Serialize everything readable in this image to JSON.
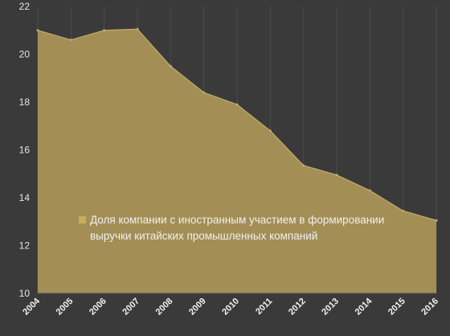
{
  "chart_data": {
    "type": "area",
    "x": [
      "2004",
      "2005",
      "2006",
      "2007",
      "2008",
      "2009",
      "2010",
      "2011",
      "2012",
      "2013",
      "2014",
      "2015",
      "2016"
    ],
    "series": [
      {
        "name": "Доля компании с иностранным участием в формировании выручки китайских промышленных компаний",
        "values": [
          21.0,
          20.6,
          21.0,
          21.05,
          19.5,
          18.4,
          17.9,
          16.8,
          15.35,
          14.95,
          14.3,
          13.45,
          13.05
        ]
      }
    ],
    "legend_lines": [
      "Доля компании с иностранным участием в формировании",
      "выручки китайских промышленных компаний"
    ],
    "yticks": [
      "10",
      "12",
      "14",
      "16",
      "18",
      "20",
      "22"
    ],
    "ylim": [
      10,
      22
    ],
    "grid": "vertical-at-categories",
    "legend_position": "center-left",
    "colors": {
      "background": "#3a3a3a",
      "area_fill": "#a38f56",
      "area_line": "#c2ab6a",
      "gridline": "#4c4c4c"
    }
  }
}
